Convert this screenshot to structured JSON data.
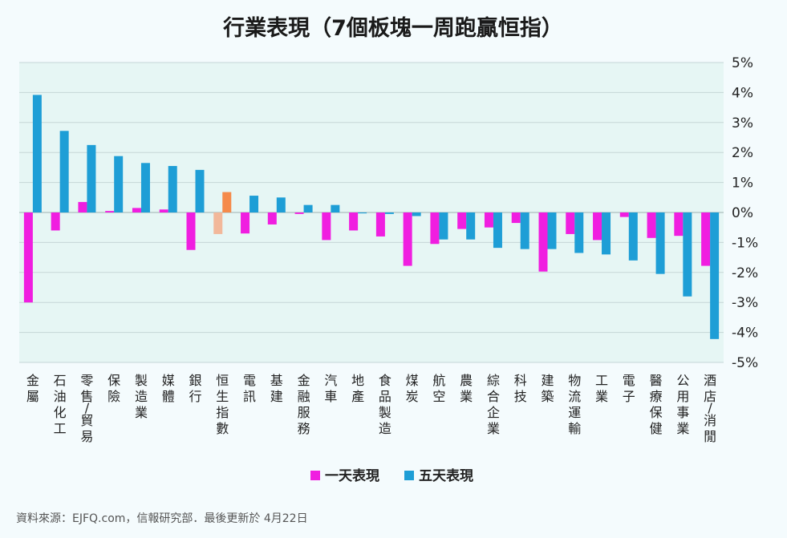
{
  "colors": {
    "one_day": "#f01ee0",
    "five_day": "#1e9ed6",
    "index_one_day": "#f2b89a",
    "index_five_day": "#f58a4a",
    "plot_bg": "#e6f6f4",
    "grid": "#c5d6d6"
  },
  "chart_data": {
    "type": "bar",
    "title": "行業表現（7個板塊一周跑贏恒指）",
    "ylim": [
      -5,
      5
    ],
    "y_ticks": [
      "5%",
      "4%",
      "3%",
      "2%",
      "1%",
      "0%",
      "-1%",
      "-2%",
      "-3%",
      "-4%",
      "-5%"
    ],
    "y_tick_values": [
      5,
      4,
      3,
      2,
      1,
      0,
      -1,
      -2,
      -3,
      -4,
      -5
    ],
    "grid": true,
    "legend_position": "bottom",
    "highlight_category": "恒生指數",
    "categories": [
      "金屬",
      "石油化工",
      "零售/貿易",
      "保險",
      "製造業",
      "媒體",
      "銀行",
      "恒生指數",
      "電訊",
      "基建",
      "金融服務",
      "汽車",
      "地產",
      "食品製造",
      "煤炭",
      "航空",
      "農業",
      "綜合企業",
      "科技",
      "建築",
      "物流運輸",
      "工業",
      "電子",
      "醫療保健",
      "公用事業",
      "酒店/消閒"
    ],
    "series": [
      {
        "name": "一天表現",
        "values": [
          -3.0,
          -0.6,
          0.35,
          0.05,
          0.15,
          0.1,
          -1.25,
          -0.72,
          -0.7,
          -0.4,
          -0.05,
          -0.92,
          -0.6,
          -0.8,
          -1.78,
          -1.05,
          -0.55,
          -0.5,
          -0.35,
          -1.97,
          -0.72,
          -0.92,
          -0.15,
          -0.85,
          -0.78,
          -1.78
        ]
      },
      {
        "name": "五天表現",
        "values": [
          3.92,
          2.72,
          2.25,
          1.88,
          1.65,
          1.55,
          1.42,
          0.68,
          0.56,
          0.5,
          0.25,
          0.25,
          -0.03,
          -0.05,
          -0.12,
          -0.9,
          -0.9,
          -1.18,
          -1.22,
          -1.22,
          -1.35,
          -1.4,
          -1.6,
          -2.05,
          -2.8,
          -4.22
        ]
      }
    ]
  },
  "footer": {
    "source": "資料來源：EJFQ.com，信報研究部．最後更新於 4月22日"
  }
}
